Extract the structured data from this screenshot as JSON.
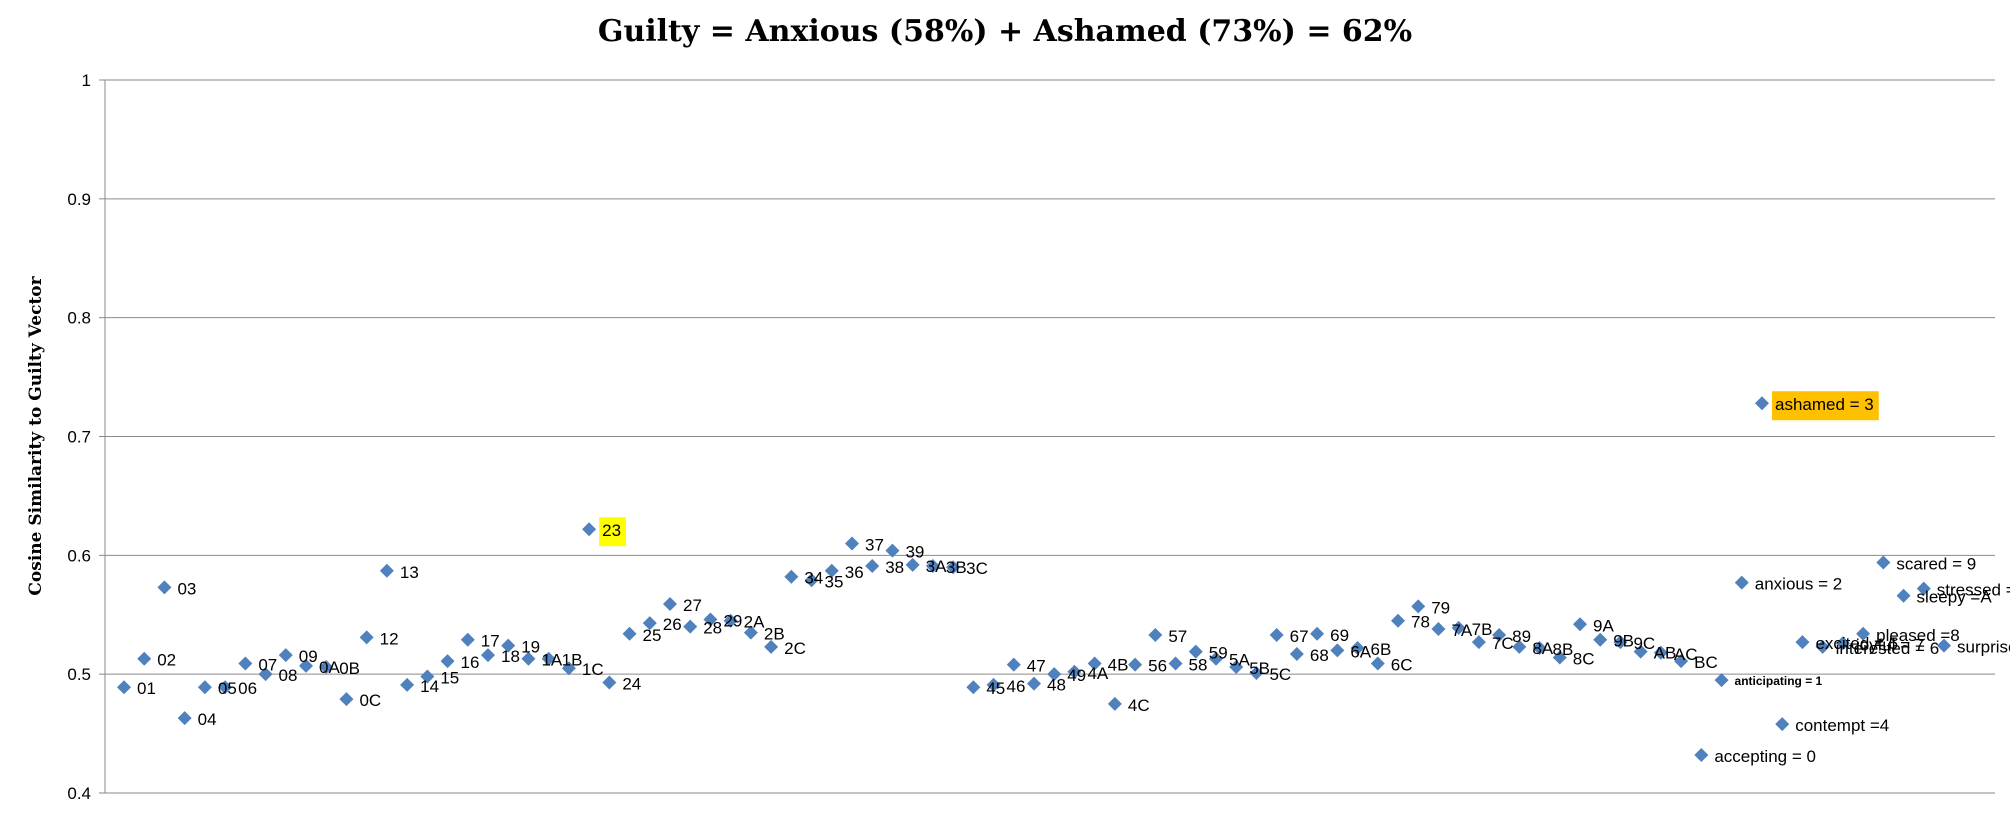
{
  "chart_data": {
    "type": "scatter",
    "title": "Guilty = Anxious (58%) + Ashamed (73%) = 62%",
    "xlabel": "",
    "ylabel": "Cosine Similarity to Guilty Vector",
    "ylim": [
      0.4,
      1.0
    ],
    "yticks": [
      "0.4",
      "0.5",
      "0.6",
      "0.7",
      "0.8",
      "0.9",
      "1"
    ],
    "grid": true,
    "marker_color": "#4F81BD",
    "highlight_colors": {
      "yellow": "#FFFF00",
      "orange": "#FFC000"
    },
    "points": [
      {
        "label": "01",
        "y": 0.489
      },
      {
        "label": "02",
        "y": 0.513
      },
      {
        "label": "03",
        "y": 0.573
      },
      {
        "label": "04",
        "y": 0.463
      },
      {
        "label": "05",
        "y": 0.489
      },
      {
        "label": "06",
        "y": 0.489
      },
      {
        "label": "07",
        "y": 0.509
      },
      {
        "label": "08",
        "y": 0.5
      },
      {
        "label": "09",
        "y": 0.516
      },
      {
        "label": "0A",
        "y": 0.507
      },
      {
        "label": "0B",
        "y": 0.506
      },
      {
        "label": "0C",
        "y": 0.479
      },
      {
        "label": "12",
        "y": 0.531
      },
      {
        "label": "13",
        "y": 0.587
      },
      {
        "label": "14",
        "y": 0.491
      },
      {
        "label": "15",
        "y": 0.498
      },
      {
        "label": "16",
        "y": 0.511
      },
      {
        "label": "17",
        "y": 0.529
      },
      {
        "label": "18",
        "y": 0.516
      },
      {
        "label": "19",
        "y": 0.524
      },
      {
        "label": "1A",
        "y": 0.513
      },
      {
        "label": "1B",
        "y": 0.513
      },
      {
        "label": "1C",
        "y": 0.505
      },
      {
        "label": "23",
        "y": 0.622,
        "highlight": "yellow"
      },
      {
        "label": "24",
        "y": 0.493
      },
      {
        "label": "25",
        "y": 0.534
      },
      {
        "label": "26",
        "y": 0.543
      },
      {
        "label": "27",
        "y": 0.559
      },
      {
        "label": "28",
        "y": 0.54
      },
      {
        "label": "29",
        "y": 0.546
      },
      {
        "label": "2A",
        "y": 0.545
      },
      {
        "label": "2B",
        "y": 0.535
      },
      {
        "label": "2C",
        "y": 0.523
      },
      {
        "label": "34",
        "y": 0.582
      },
      {
        "label": "35",
        "y": 0.579
      },
      {
        "label": "36",
        "y": 0.587
      },
      {
        "label": "37",
        "y": 0.61
      },
      {
        "label": "38",
        "y": 0.591
      },
      {
        "label": "39",
        "y": 0.604
      },
      {
        "label": "3A",
        "y": 0.592
      },
      {
        "label": "3B",
        "y": 0.591
      },
      {
        "label": "3C",
        "y": 0.59
      },
      {
        "label": "45",
        "y": 0.489
      },
      {
        "label": "46",
        "y": 0.491
      },
      {
        "label": "47",
        "y": 0.508
      },
      {
        "label": "48",
        "y": 0.492
      },
      {
        "label": "49",
        "y": 0.5
      },
      {
        "label": "4A",
        "y": 0.502
      },
      {
        "label": "4B",
        "y": 0.509
      },
      {
        "label": "4C",
        "y": 0.475
      },
      {
        "label": "56",
        "y": 0.508
      },
      {
        "label": "57",
        "y": 0.533
      },
      {
        "label": "58",
        "y": 0.509
      },
      {
        "label": "59",
        "y": 0.519
      },
      {
        "label": "5A",
        "y": 0.513
      },
      {
        "label": "5B",
        "y": 0.506
      },
      {
        "label": "5C",
        "y": 0.501
      },
      {
        "label": "67",
        "y": 0.533
      },
      {
        "label": "68",
        "y": 0.517
      },
      {
        "label": "69",
        "y": 0.534
      },
      {
        "label": "6A",
        "y": 0.52
      },
      {
        "label": "6B",
        "y": 0.522
      },
      {
        "label": "6C",
        "y": 0.509
      },
      {
        "label": "78",
        "y": 0.545
      },
      {
        "label": "79",
        "y": 0.557
      },
      {
        "label": "7A",
        "y": 0.538
      },
      {
        "label": "7B",
        "y": 0.539
      },
      {
        "label": "7C",
        "y": 0.527
      },
      {
        "label": "89",
        "y": 0.533
      },
      {
        "label": "8A",
        "y": 0.523
      },
      {
        "label": "8B",
        "y": 0.522
      },
      {
        "label": "8C",
        "y": 0.514
      },
      {
        "label": "9A",
        "y": 0.542
      },
      {
        "label": "9B",
        "y": 0.529
      },
      {
        "label": "9C",
        "y": 0.527
      },
      {
        "label": "AB",
        "y": 0.519
      },
      {
        "label": "AC",
        "y": 0.518
      },
      {
        "label": "BC",
        "y": 0.511
      },
      {
        "label": "accepting = 0",
        "y": 0.432
      },
      {
        "label": "anticipating = 1",
        "y": 0.495,
        "small_bold": true
      },
      {
        "label": "anxious = 2",
        "y": 0.577
      },
      {
        "label": "ashamed = 3",
        "y": 0.728,
        "highlight": "orange"
      },
      {
        "label": "contempt =4",
        "y": 0.458
      },
      {
        "label": "excited = 5",
        "y": 0.527
      },
      {
        "label": "interested = 6",
        "y": 0.523
      },
      {
        "label": "joyful = 7",
        "y": 0.526
      },
      {
        "label": "pleased =8",
        "y": 0.534
      },
      {
        "label": "scared = 9",
        "y": 0.594
      },
      {
        "label": "sleepy =A",
        "y": 0.566
      },
      {
        "label": "stressed =B",
        "y": 0.572
      },
      {
        "label": "surprised = C",
        "y": 0.524
      }
    ]
  }
}
